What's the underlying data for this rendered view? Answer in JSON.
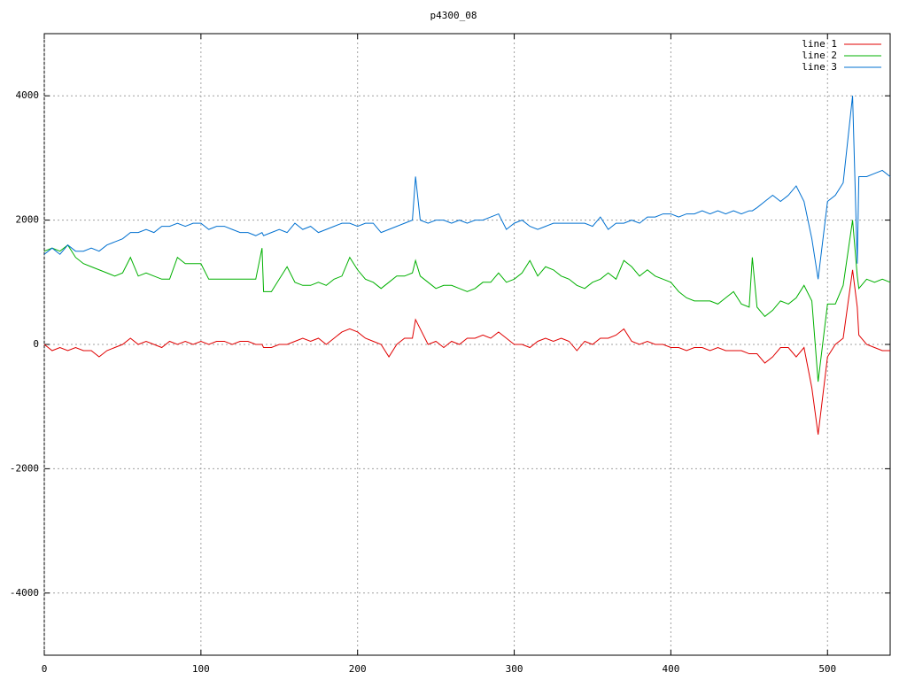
{
  "chart_data": {
    "type": "line",
    "title": "p4300_08",
    "x": [
      0,
      5,
      10,
      15,
      20,
      25,
      30,
      35,
      40,
      45,
      50,
      55,
      60,
      65,
      70,
      75,
      80,
      85,
      90,
      95,
      100,
      105,
      110,
      115,
      120,
      125,
      130,
      135,
      139,
      140,
      145,
      150,
      155,
      160,
      165,
      170,
      175,
      180,
      185,
      190,
      195,
      200,
      205,
      210,
      215,
      220,
      225,
      230,
      235,
      237,
      240,
      245,
      250,
      255,
      260,
      265,
      270,
      275,
      280,
      285,
      290,
      295,
      300,
      305,
      310,
      315,
      320,
      325,
      330,
      335,
      340,
      345,
      350,
      355,
      360,
      365,
      370,
      375,
      380,
      385,
      390,
      395,
      400,
      405,
      410,
      415,
      420,
      425,
      430,
      435,
      440,
      445,
      450,
      452,
      455,
      460,
      465,
      470,
      475,
      480,
      485,
      490,
      494,
      500,
      505,
      510,
      516,
      519,
      520,
      525,
      530,
      535,
      540
    ],
    "series": [
      {
        "name": "line 1",
        "color": "#e00000",
        "values": [
          0,
          -100,
          -50,
          -100,
          -50,
          -100,
          -100,
          -200,
          -100,
          -50,
          0,
          100,
          0,
          50,
          0,
          -50,
          50,
          0,
          50,
          0,
          50,
          0,
          50,
          50,
          0,
          50,
          50,
          0,
          0,
          -50,
          -50,
          0,
          0,
          50,
          100,
          50,
          100,
          0,
          100,
          200,
          250,
          200,
          100,
          50,
          0,
          -200,
          0,
          100,
          100,
          400,
          250,
          0,
          50,
          -50,
          50,
          0,
          100,
          100,
          150,
          100,
          200,
          100,
          0,
          0,
          -50,
          50,
          100,
          50,
          100,
          50,
          -100,
          50,
          0,
          100,
          100,
          150,
          250,
          50,
          0,
          50,
          0,
          0,
          -50,
          -50,
          -100,
          -50,
          -50,
          -100,
          -50,
          -100,
          -100,
          -100,
          -150,
          -150,
          -150,
          -300,
          -200,
          -50,
          -50,
          -200,
          -50,
          -700,
          -1450,
          -200,
          0,
          100,
          1200,
          600,
          150,
          0,
          -50,
          -100,
          -100
        ]
      },
      {
        "name": "line 2",
        "color": "#00b000",
        "values": [
          1500,
          1550,
          1500,
          1600,
          1400,
          1300,
          1250,
          1200,
          1150,
          1100,
          1150,
          1400,
          1100,
          1150,
          1100,
          1050,
          1050,
          1400,
          1300,
          1300,
          1300,
          1050,
          1050,
          1050,
          1050,
          1050,
          1050,
          1050,
          1550,
          850,
          850,
          1050,
          1250,
          1000,
          950,
          950,
          1000,
          950,
          1050,
          1100,
          1400,
          1200,
          1050,
          1000,
          900,
          1000,
          1100,
          1100,
          1150,
          1350,
          1100,
          1000,
          900,
          950,
          950,
          900,
          850,
          900,
          1000,
          1000,
          1150,
          1000,
          1050,
          1150,
          1350,
          1100,
          1250,
          1200,
          1100,
          1050,
          950,
          900,
          1000,
          1050,
          1150,
          1050,
          1350,
          1250,
          1100,
          1200,
          1100,
          1050,
          1000,
          850,
          750,
          700,
          700,
          700,
          650,
          750,
          850,
          650,
          600,
          1400,
          600,
          450,
          550,
          700,
          650,
          750,
          950,
          700,
          -600,
          650,
          650,
          950,
          2000,
          1100,
          900,
          1050,
          1000,
          1050,
          1000
        ]
      },
      {
        "name": "line 3",
        "color": "#0070d0",
        "values": [
          1450,
          1550,
          1450,
          1600,
          1500,
          1500,
          1550,
          1500,
          1600,
          1650,
          1700,
          1800,
          1800,
          1850,
          1800,
          1900,
          1900,
          1950,
          1900,
          1950,
          1950,
          1850,
          1900,
          1900,
          1850,
          1800,
          1800,
          1750,
          1800,
          1750,
          1800,
          1850,
          1800,
          1950,
          1850,
          1900,
          1800,
          1850,
          1900,
          1950,
          1950,
          1900,
          1950,
          1950,
          1800,
          1850,
          1900,
          1950,
          2000,
          2700,
          2000,
          1950,
          2000,
          2000,
          1950,
          2000,
          1950,
          2000,
          2000,
          2050,
          2100,
          1850,
          1950,
          2000,
          1900,
          1850,
          1900,
          1950,
          1950,
          1950,
          1950,
          1950,
          1900,
          2050,
          1850,
          1950,
          1950,
          2000,
          1950,
          2050,
          2050,
          2100,
          2100,
          2050,
          2100,
          2100,
          2150,
          2100,
          2150,
          2100,
          2150,
          2100,
          2150,
          2150,
          2200,
          2300,
          2400,
          2300,
          2400,
          2550,
          2300,
          1700,
          1050,
          2300,
          2400,
          2600,
          4000,
          1300,
          2700,
          2700,
          2750,
          2800,
          2700
        ]
      }
    ],
    "xlim": [
      0,
      540
    ],
    "xticks": [
      0,
      100,
      200,
      300,
      400,
      500
    ],
    "ylim": [
      -5000,
      5000
    ],
    "yticks": [
      -4000,
      -2000,
      0,
      2000,
      4000
    ],
    "grid": true,
    "legend": "top-right"
  }
}
